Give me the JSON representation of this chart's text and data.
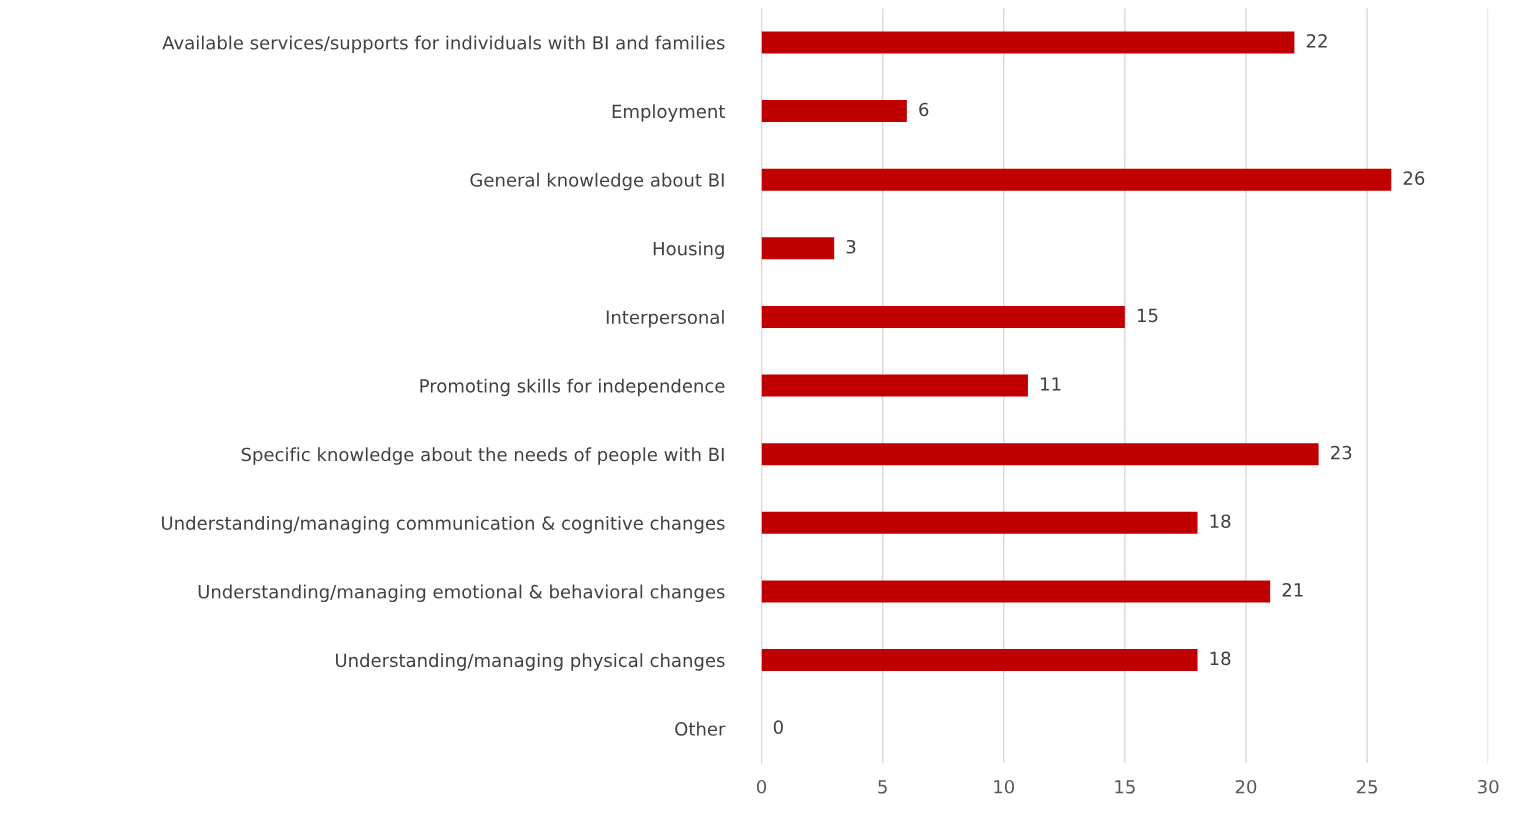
{
  "chart_data": {
    "type": "bar",
    "orientation": "horizontal",
    "categories": [
      "Available services/supports for individuals with BI and families",
      "Employment",
      "General knowledge about BI",
      "Housing",
      "Interpersonal",
      "Promoting skills for independence",
      "Specific knowledge about the needs of people with BI",
      "Understanding/managing communication & cognitive changes",
      "Understanding/managing emotional & behavioral changes",
      "Understanding/managing physical changes",
      "Other"
    ],
    "values": [
      22,
      6,
      26,
      3,
      15,
      11,
      23,
      18,
      21,
      18,
      0
    ],
    "color": "#c00000",
    "xlim": [
      0,
      30
    ],
    "xticks": [
      0,
      5,
      10,
      15,
      20,
      25,
      30
    ],
    "grid": "x",
    "data_labels": true,
    "legend": false
  }
}
